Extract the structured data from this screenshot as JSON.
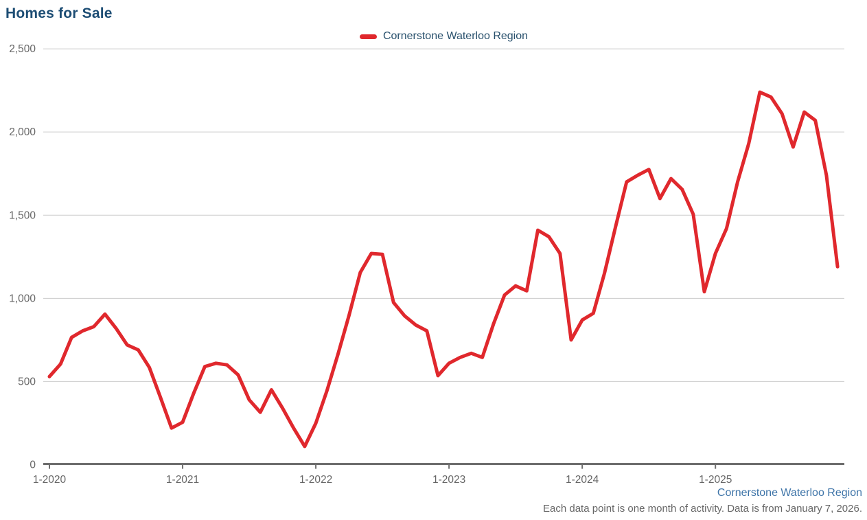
{
  "title": "Homes for Sale",
  "legend": {
    "label": "Cornerstone Waterloo Region"
  },
  "footer": {
    "source": "Cornerstone Waterloo Region",
    "note": "Each data point is one month of activity. Data is from January 7, 2026."
  },
  "colors": {
    "series": "#e0282d",
    "title_text": "#1d4d74",
    "legend_text": "#28506c",
    "axis_label_text": "#666666",
    "gridline": "#cccccc",
    "axis_line": "#6e6e6e",
    "footer_link": "#3e74a8",
    "footer_note": "#666666"
  },
  "chart_data": {
    "type": "line",
    "title": "Homes for Sale",
    "xlabel": "",
    "ylabel": "",
    "ylim": [
      0,
      2500
    ],
    "grid": "horizontal",
    "legend_position": "top-center",
    "note": "each data point is one month",
    "y_tick_values": [
      0,
      500,
      1000,
      1500,
      2000,
      2500
    ],
    "y_tick_labels": [
      "0",
      "500",
      "1,000",
      "1,500",
      "2,000",
      "2,500"
    ],
    "x_tick_labels": [
      "1-2020",
      "1-2021",
      "1-2022",
      "1-2023",
      "1-2024",
      "1-2025"
    ],
    "x_tick_month_indices": [
      0,
      12,
      24,
      36,
      48,
      60
    ],
    "months": [
      "1-2020",
      "2-2020",
      "3-2020",
      "4-2020",
      "5-2020",
      "6-2020",
      "7-2020",
      "8-2020",
      "9-2020",
      "10-2020",
      "11-2020",
      "12-2020",
      "1-2021",
      "2-2021",
      "3-2021",
      "4-2021",
      "5-2021",
      "6-2021",
      "7-2021",
      "8-2021",
      "9-2021",
      "10-2021",
      "11-2021",
      "12-2021",
      "1-2022",
      "2-2022",
      "3-2022",
      "4-2022",
      "5-2022",
      "6-2022",
      "7-2022",
      "8-2022",
      "9-2022",
      "10-2022",
      "11-2022",
      "12-2022",
      "1-2023",
      "2-2023",
      "3-2023",
      "4-2023",
      "5-2023",
      "6-2023",
      "7-2023",
      "8-2023",
      "9-2023",
      "10-2023",
      "11-2023",
      "12-2023",
      "1-2024",
      "2-2024",
      "3-2024",
      "4-2024",
      "5-2024",
      "6-2024",
      "7-2024",
      "8-2024",
      "9-2024",
      "10-2024",
      "11-2024",
      "12-2024",
      "1-2025",
      "2-2025",
      "3-2025",
      "4-2025",
      "5-2025",
      "6-2025",
      "7-2025",
      "8-2025",
      "9-2025",
      "10-2025",
      "11-2025",
      "12-2025"
    ],
    "series": [
      {
        "name": "Cornerstone Waterloo Region",
        "color": "#e0282d",
        "values": [
          530,
          605,
          765,
          805,
          830,
          905,
          820,
          720,
          690,
          585,
          405,
          220,
          255,
          430,
          590,
          610,
          600,
          540,
          390,
          315,
          450,
          340,
          220,
          110,
          250,
          445,
          665,
          900,
          1155,
          1270,
          1265,
          975,
          895,
          840,
          805,
          535,
          610,
          645,
          670,
          645,
          845,
          1020,
          1075,
          1045,
          1410,
          1370,
          1270,
          750,
          870,
          910,
          1150,
          1430,
          1700,
          1740,
          1775,
          1600,
          1720,
          1655,
          1505,
          1040,
          1270,
          1420,
          1700,
          1930,
          2240,
          2210,
          2110,
          1910,
          2120,
          2070,
          1740,
          1190
        ]
      }
    ]
  }
}
